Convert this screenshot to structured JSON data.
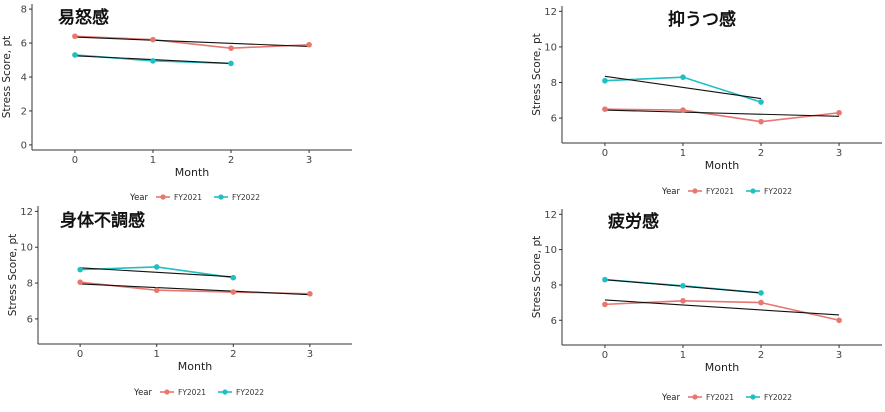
{
  "colors": {
    "FY2021": "#e8776f",
    "FY2022": "#1fbfc3",
    "trend": "#111111",
    "axis": "#333333"
  },
  "chart_data": [
    {
      "type": "line",
      "title": "易怒感",
      "xlabel": "Month",
      "ylabel": "Stress Score, pt",
      "xlim": [
        -0.55,
        3.55
      ],
      "ylim": [
        -0.3,
        8.3
      ],
      "xticks": [
        "0",
        "1",
        "2",
        "3"
      ],
      "yticks": [
        "0",
        "2",
        "4",
        "6",
        "8"
      ],
      "legend_title": "Year",
      "legend_position": "bottom",
      "series": [
        {
          "name": "FY2021",
          "x": [
            0,
            1,
            2,
            3
          ],
          "values": [
            6.4,
            6.2,
            5.7,
            5.9
          ],
          "trend": {
            "x": [
              0,
              3
            ],
            "values": [
              6.35,
              5.8
            ]
          }
        },
        {
          "name": "FY2022",
          "x": [
            0,
            1,
            2
          ],
          "values": [
            5.3,
            4.95,
            4.8
          ],
          "trend": {
            "x": [
              0,
              2
            ],
            "values": [
              5.25,
              4.8
            ]
          }
        }
      ]
    },
    {
      "type": "line",
      "title": "抑うつ感",
      "xlabel": "Month",
      "ylabel": "Stress Score, pt",
      "xlim": [
        -0.55,
        3.55
      ],
      "ylim": [
        4.6,
        12.3
      ],
      "xticks": [
        "0",
        "1",
        "2",
        "3"
      ],
      "yticks": [
        "6",
        "8",
        "10",
        "12"
      ],
      "legend_title": "Year",
      "legend_position": "bottom",
      "series": [
        {
          "name": "FY2021",
          "x": [
            0,
            1,
            2,
            3
          ],
          "values": [
            6.5,
            6.45,
            5.8,
            6.3
          ],
          "trend": {
            "x": [
              0,
              3
            ],
            "values": [
              6.45,
              6.1
            ]
          }
        },
        {
          "name": "FY2022",
          "x": [
            0,
            1,
            2
          ],
          "values": [
            8.1,
            8.3,
            6.9
          ],
          "trend": {
            "x": [
              0,
              2
            ],
            "values": [
              8.35,
              7.1
            ]
          }
        }
      ]
    },
    {
      "type": "line",
      "title": "身体不調感",
      "xlabel": "Month",
      "ylabel": "Stress Score, pt",
      "xlim": [
        -0.55,
        3.55
      ],
      "ylim": [
        4.6,
        12.3
      ],
      "xticks": [
        "0",
        "1",
        "2",
        "3"
      ],
      "yticks": [
        "6",
        "8",
        "10",
        "12"
      ],
      "legend_title": "Year",
      "legend_position": "bottom",
      "series": [
        {
          "name": "FY2021",
          "x": [
            0,
            1,
            2,
            3
          ],
          "values": [
            8.05,
            7.6,
            7.5,
            7.4
          ],
          "trend": {
            "x": [
              0,
              3
            ],
            "values": [
              7.95,
              7.35
            ]
          }
        },
        {
          "name": "FY2022",
          "x": [
            0,
            1,
            2
          ],
          "values": [
            8.75,
            8.9,
            8.3
          ],
          "trend": {
            "x": [
              0,
              2
            ],
            "values": [
              8.85,
              8.35
            ]
          }
        }
      ]
    },
    {
      "type": "line",
      "title": "疲労感",
      "xlabel": "Month",
      "ylabel": "Stress Score, pt",
      "xlim": [
        -0.55,
        3.55
      ],
      "ylim": [
        4.6,
        12.3
      ],
      "xticks": [
        "0",
        "1",
        "2",
        "3"
      ],
      "yticks": [
        "6",
        "8",
        "10",
        "12"
      ],
      "legend_title": "Year",
      "legend_position": "bottom",
      "series": [
        {
          "name": "FY2021",
          "x": [
            0,
            1,
            2,
            3
          ],
          "values": [
            6.9,
            7.1,
            7.0,
            6.0
          ],
          "trend": {
            "x": [
              0,
              3
            ],
            "values": [
              7.15,
              6.3
            ]
          }
        },
        {
          "name": "FY2022",
          "x": [
            0,
            1,
            2
          ],
          "values": [
            8.3,
            7.95,
            7.55
          ],
          "trend": {
            "x": [
              0,
              2
            ],
            "values": [
              8.3,
              7.55
            ]
          }
        }
      ]
    }
  ]
}
